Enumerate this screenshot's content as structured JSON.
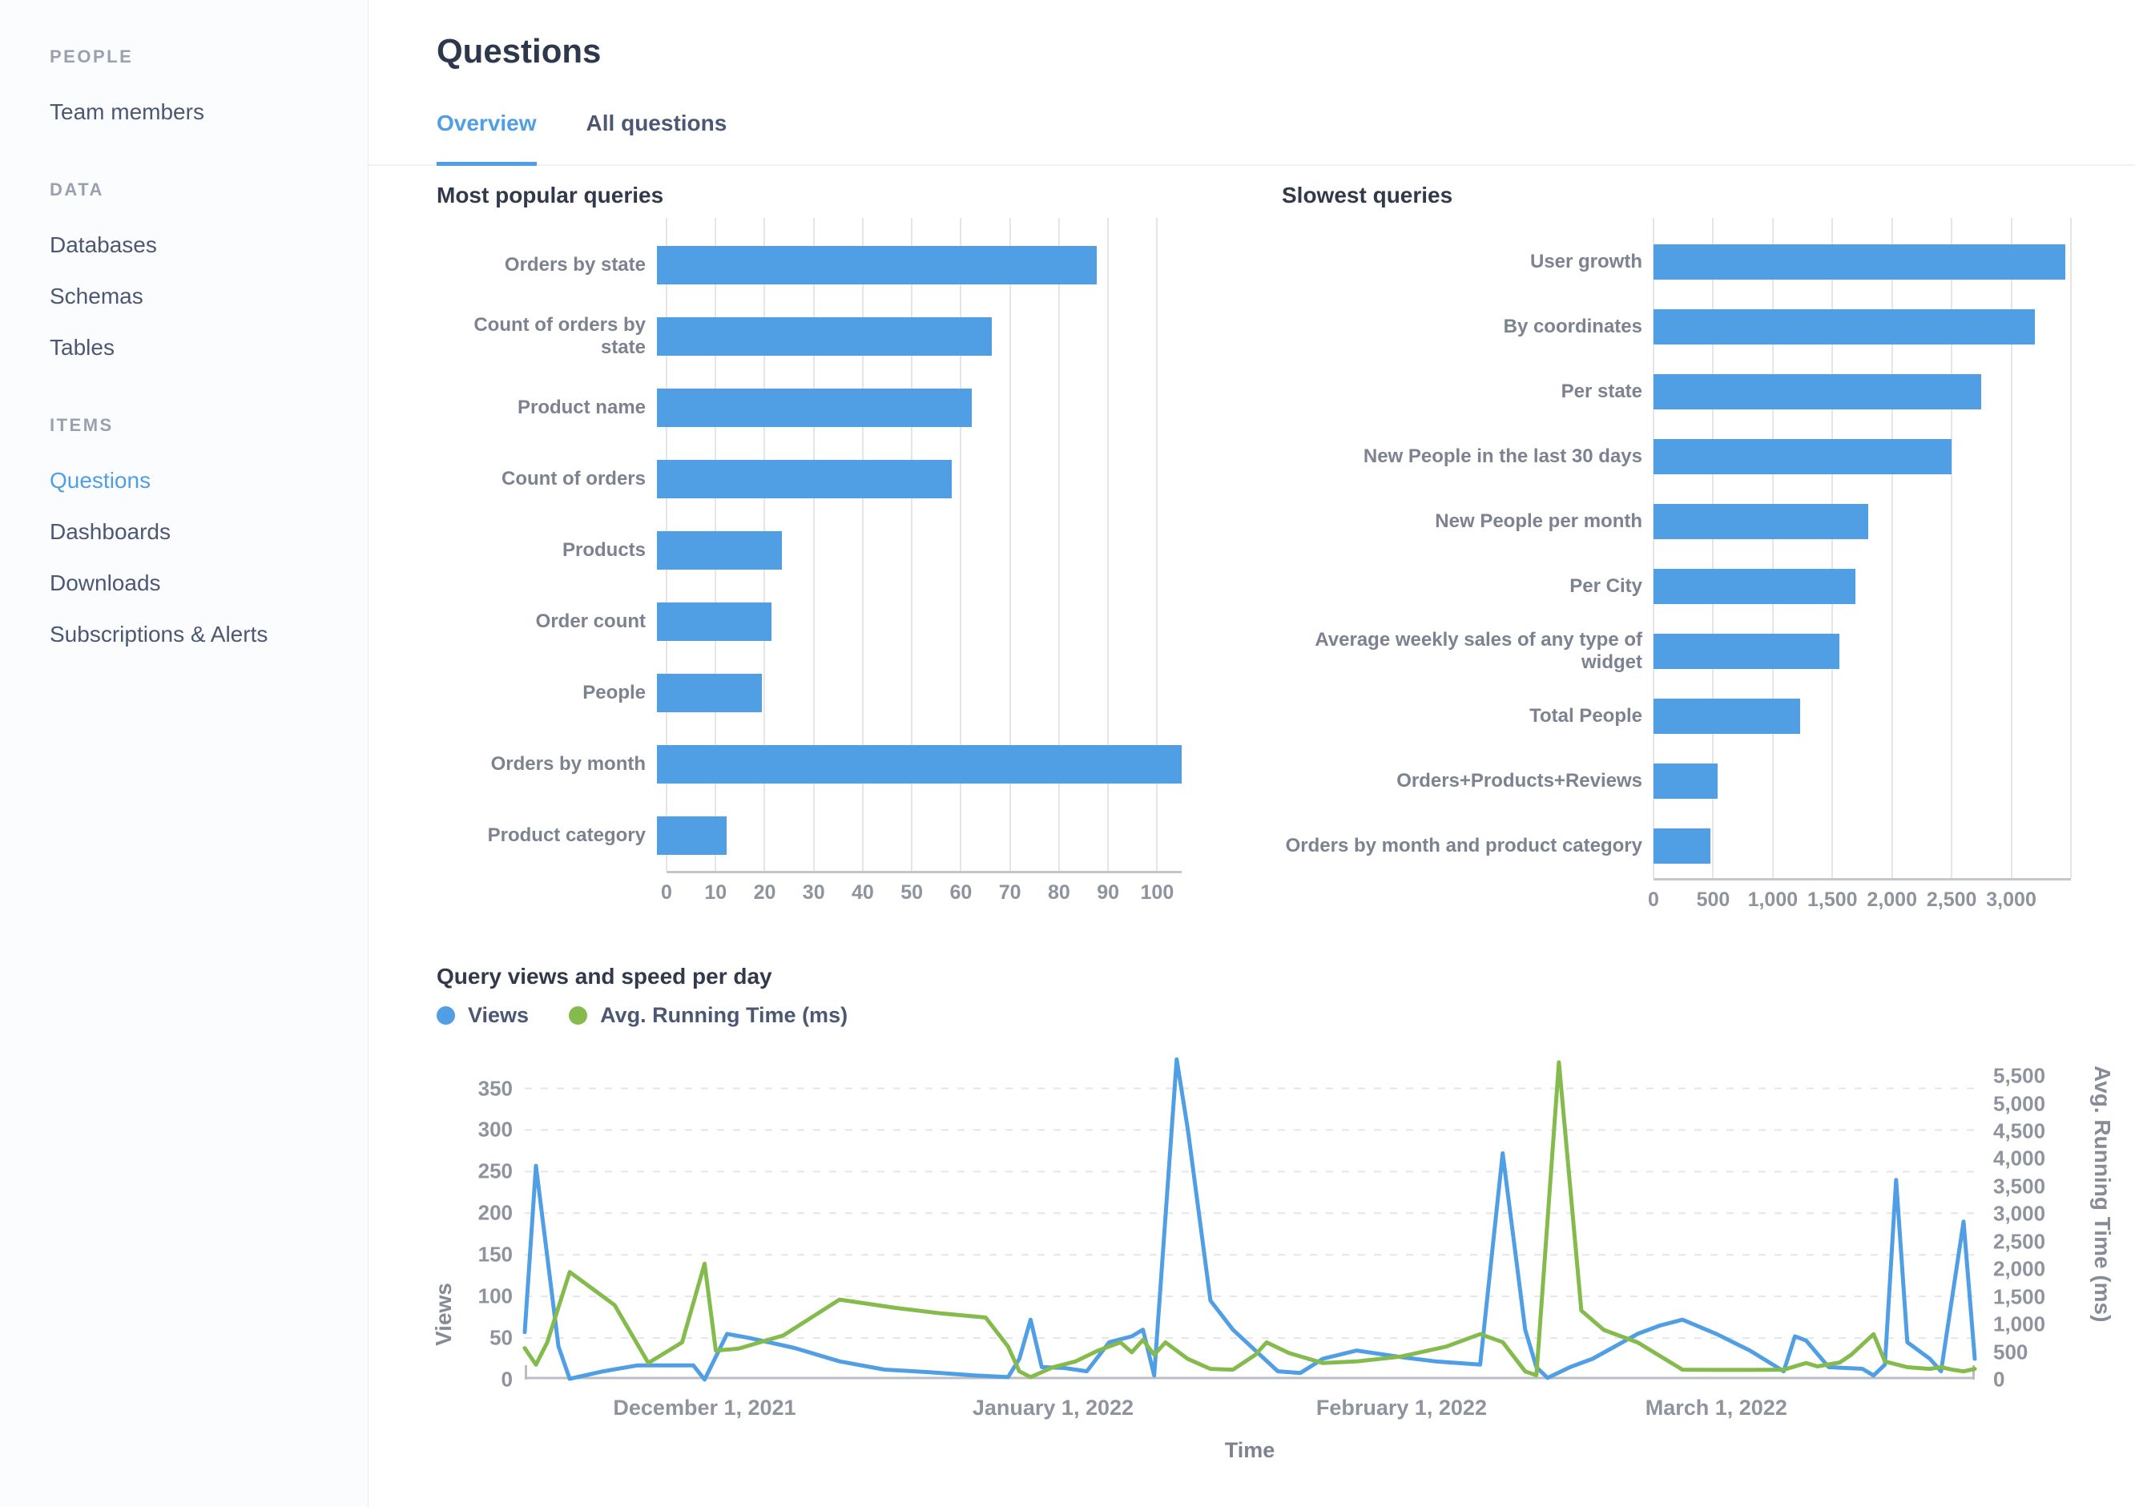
{
  "colors": {
    "brand_blue": "#509EE3",
    "green": "#84BB4C"
  },
  "sidebar": {
    "sections": [
      {
        "header": "PEOPLE",
        "items": [
          {
            "label": "Team members",
            "active": false
          }
        ]
      },
      {
        "header": "DATA",
        "items": [
          {
            "label": "Databases",
            "active": false
          },
          {
            "label": "Schemas",
            "active": false
          },
          {
            "label": "Tables",
            "active": false
          }
        ]
      },
      {
        "header": "ITEMS",
        "items": [
          {
            "label": "Questions",
            "active": true
          },
          {
            "label": "Dashboards",
            "active": false
          },
          {
            "label": "Downloads",
            "active": false
          },
          {
            "label": "Subscriptions & Alerts",
            "active": false
          }
        ]
      }
    ]
  },
  "header": {
    "title": "Questions",
    "tabs": [
      {
        "label": "Overview",
        "active": true
      },
      {
        "label": "All questions",
        "active": false
      }
    ]
  },
  "chart_data": [
    {
      "type": "bar",
      "orientation": "horizontal",
      "title": "Most popular queries",
      "categories": [
        "Orders by state",
        "Count of orders by state",
        "Product name",
        "Count of orders",
        "Products",
        "Order count",
        "People",
        "Orders by month",
        "Product category"
      ],
      "values": [
        88,
        67,
        63,
        59,
        25,
        23,
        21,
        105,
        14
      ],
      "xmax": 105,
      "grid_values": [
        0,
        10,
        20,
        30,
        40,
        50,
        60,
        70,
        80,
        90,
        100
      ],
      "xticks": [
        0,
        10,
        20,
        30,
        40,
        50,
        60,
        70,
        80,
        90,
        100
      ],
      "xtick_labels": [
        "0",
        "10",
        "20",
        "30",
        "40",
        "50",
        "60",
        "70",
        "80",
        "90",
        "100"
      ],
      "bar_color": "#509EE3"
    },
    {
      "type": "bar",
      "orientation": "horizontal",
      "title": "Slowest queries",
      "categories": [
        "User growth",
        "By coordinates",
        "Per state",
        "New People in the last 30 days",
        "New People per month",
        "Per City",
        "Average weekly sales of any type of widget",
        "Total People",
        "Orders+Products+Reviews",
        "Orders by month and product category"
      ],
      "values": [
        3450,
        3200,
        2750,
        2500,
        1800,
        1690,
        1560,
        1230,
        540,
        480
      ],
      "xmax": 3500,
      "grid_values": [
        0,
        500,
        1000,
        1500,
        2000,
        2500,
        3000,
        3500
      ],
      "xticks": [
        0,
        500,
        1000,
        1500,
        2000,
        2500,
        3000
      ],
      "xtick_labels": [
        "0",
        "500",
        "1,000",
        "1,500",
        "2,000",
        "2,500",
        "3,000"
      ],
      "bar_color": "#509EE3"
    },
    {
      "type": "line",
      "title": "Query views and speed per day",
      "xlabel": "Time",
      "x_range_days": [
        0,
        129
      ],
      "x_ticks": [
        {
          "label": "December 1, 2021",
          "day": 16
        },
        {
          "label": "January 1, 2022",
          "day": 47
        },
        {
          "label": "February 1, 2022",
          "day": 78
        },
        {
          "label": "March 1, 2022",
          "day": 106
        }
      ],
      "left_axis": {
        "label": "Views",
        "ticks": [
          0,
          50,
          100,
          150,
          200,
          250,
          300,
          350
        ],
        "tick_labels": [
          "0",
          "50",
          "100",
          "150",
          "200",
          "250",
          "300",
          "350"
        ],
        "plot_max": 389
      },
      "right_axis": {
        "label": "Avg. Running Time (ms)",
        "ticks": [
          0,
          500,
          1000,
          1500,
          2000,
          2500,
          3000,
          3500,
          4000,
          4500,
          5000,
          5500
        ],
        "tick_labels": [
          "0",
          "500",
          "1,000",
          "1,500",
          "2,000",
          "2,500",
          "3,000",
          "3,500",
          "4,000",
          "4,500",
          "5,000",
          "5,500"
        ],
        "plot_max": 5865
      },
      "series": [
        {
          "name": "Views",
          "color": "#509EE3",
          "axis": "left",
          "points": [
            [
              0,
              57
            ],
            [
              1,
              257
            ],
            [
              3,
              40
            ],
            [
              4,
              1
            ],
            [
              7,
              10
            ],
            [
              10,
              17
            ],
            [
              13,
              17
            ],
            [
              15,
              17
            ],
            [
              16,
              0
            ],
            [
              18,
              55
            ],
            [
              20,
              50
            ],
            [
              24,
              38
            ],
            [
              28,
              22
            ],
            [
              32,
              12
            ],
            [
              36,
              9
            ],
            [
              40,
              5
            ],
            [
              43,
              3
            ],
            [
              44,
              25
            ],
            [
              45,
              72
            ],
            [
              46,
              15
            ],
            [
              48,
              14
            ],
            [
              50,
              10
            ],
            [
              52,
              45
            ],
            [
              54,
              52
            ],
            [
              55,
              60
            ],
            [
              56,
              5
            ],
            [
              58,
              385
            ],
            [
              59,
              300
            ],
            [
              61,
              95
            ],
            [
              63,
              60
            ],
            [
              65,
              35
            ],
            [
              67,
              10
            ],
            [
              69,
              8
            ],
            [
              71,
              25
            ],
            [
              74,
              35
            ],
            [
              78,
              27
            ],
            [
              81,
              22
            ],
            [
              85,
              18
            ],
            [
              87,
              272
            ],
            [
              89,
              60
            ],
            [
              90,
              15
            ],
            [
              91,
              2
            ],
            [
              93,
              15
            ],
            [
              95,
              25
            ],
            [
              97,
              40
            ],
            [
              99,
              55
            ],
            [
              101,
              65
            ],
            [
              103,
              72
            ],
            [
              106,
              55
            ],
            [
              109,
              35
            ],
            [
              112,
              10
            ],
            [
              113,
              52
            ],
            [
              114,
              47
            ],
            [
              116,
              15
            ],
            [
              119,
              13
            ],
            [
              120,
              5
            ],
            [
              121,
              18
            ],
            [
              122,
              240
            ],
            [
              123,
              45
            ],
            [
              125,
              25
            ],
            [
              126,
              10
            ],
            [
              128,
              190
            ],
            [
              129,
              25
            ]
          ]
        },
        {
          "name": "Avg. Running Time (ms)",
          "color": "#84BB4C",
          "axis": "right",
          "points": [
            [
              0,
              570
            ],
            [
              1,
              270
            ],
            [
              2,
              675
            ],
            [
              4,
              1950
            ],
            [
              8,
              1350
            ],
            [
              11,
              300
            ],
            [
              14,
              675
            ],
            [
              16,
              2100
            ],
            [
              17,
              525
            ],
            [
              19,
              560
            ],
            [
              23,
              800
            ],
            [
              28,
              1450
            ],
            [
              33,
              1300
            ],
            [
              37,
              1200
            ],
            [
              41,
              1125
            ],
            [
              43,
              600
            ],
            [
              44,
              150
            ],
            [
              45,
              45
            ],
            [
              47,
              225
            ],
            [
              49,
              330
            ],
            [
              51,
              525
            ],
            [
              53,
              675
            ],
            [
              54,
              495
            ],
            [
              55,
              720
            ],
            [
              56,
              450
            ],
            [
              57,
              675
            ],
            [
              59,
              375
            ],
            [
              61,
              195
            ],
            [
              63,
              180
            ],
            [
              65,
              450
            ],
            [
              66,
              675
            ],
            [
              68,
              480
            ],
            [
              71,
              300
            ],
            [
              74,
              330
            ],
            [
              78,
              420
            ],
            [
              82,
              600
            ],
            [
              85,
              825
            ],
            [
              87,
              680
            ],
            [
              89,
              150
            ],
            [
              90,
              80
            ],
            [
              92,
              5750
            ],
            [
              94,
              1250
            ],
            [
              96,
              900
            ],
            [
              99,
              675
            ],
            [
              103,
              180
            ],
            [
              106,
              175
            ],
            [
              109,
              175
            ],
            [
              112,
              180
            ],
            [
              114,
              300
            ],
            [
              115,
              240
            ],
            [
              117,
              310
            ],
            [
              118,
              450
            ],
            [
              120,
              825
            ],
            [
              121,
              330
            ],
            [
              123,
              225
            ],
            [
              125,
              195
            ],
            [
              126,
              225
            ],
            [
              127,
              180
            ],
            [
              128,
              150
            ],
            [
              129,
              195
            ]
          ]
        }
      ]
    }
  ]
}
